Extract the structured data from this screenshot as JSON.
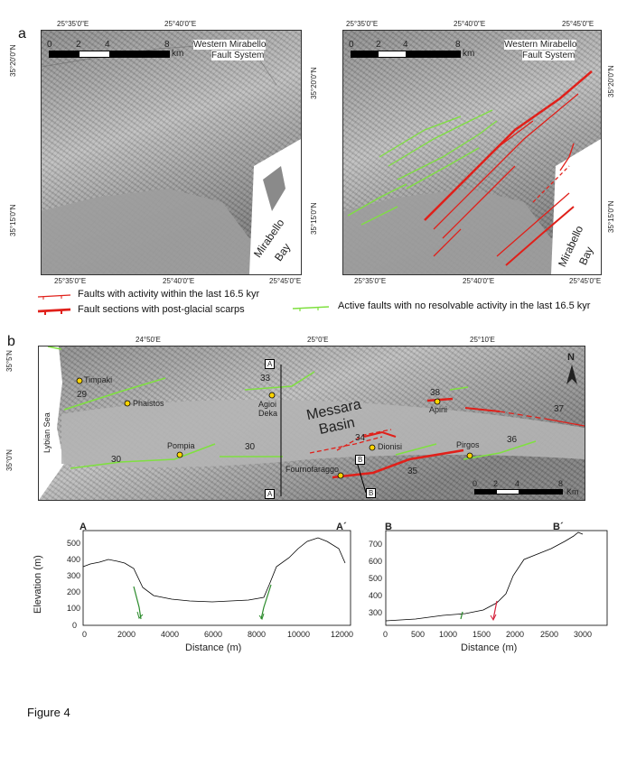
{
  "panel_a": {
    "letter": "a",
    "top_lon_labels": [
      "25°35'0\"E",
      "25°40'0\"E"
    ],
    "top_lon_labels_right": [
      "25°35'0\"E",
      "25°40'0\"E",
      "25°45'0\"E"
    ],
    "bottom_lon_labels": [
      "25°35'0\"E",
      "25°40'0\"E",
      "25°45'0\"E"
    ],
    "lat_labels": [
      "35°20'0\"N",
      "35°15'0\"N"
    ],
    "scale_ticks": [
      "0",
      "2",
      "4",
      "8"
    ],
    "scale_unit": "km",
    "title_line1": "Western Mirabello",
    "title_line2": "Fault System",
    "bay_line1": "Mirabello",
    "bay_line2": "Bay"
  },
  "legend": {
    "thin_red": "Faults with activity within the last 16.5 kyr",
    "thick_red": "Fault sections with post-glacial scarps",
    "green": "Active faults with no resolvable activity in the  last 16.5 kyr"
  },
  "panel_b": {
    "letter": "b",
    "lon_labels": [
      "24°50'E",
      "25°0'E",
      "25°10'E"
    ],
    "lat_labels": [
      "35°5'N",
      "35°0'N"
    ],
    "places": [
      "Timpaki",
      "Phaistos",
      "Agioi",
      "Deka",
      "Pompia",
      "Dionisi",
      "Fournofaraggo",
      "Apini",
      "Pirgos"
    ],
    "basin_line1": "Messara",
    "basin_line2": "Basin",
    "sea": "Lybian Sea",
    "fault_numbers": [
      "29",
      "30",
      "30",
      "33",
      "34",
      "35",
      "36",
      "37",
      "38"
    ],
    "section_markers": [
      "A",
      "A",
      "B",
      "B"
    ],
    "scale_ticks": [
      "0",
      "2",
      "4",
      "8"
    ],
    "scale_unit": "Km",
    "north": "N"
  },
  "profile_A": {
    "start": "A",
    "end": "A´",
    "ylabel": "Elevation (m)",
    "xlabel": "Distance (m)",
    "xticks": [
      "0",
      "2000",
      "4000",
      "6000",
      "8000",
      "10000",
      "12000"
    ],
    "yticks": [
      "0",
      "100",
      "200",
      "300",
      "400",
      "500"
    ]
  },
  "profile_B": {
    "start": "B",
    "end": "B´",
    "xlabel": "Distance (m)",
    "xticks": [
      "0",
      "500",
      "1000",
      "1500",
      "2000",
      "2500",
      "3000"
    ],
    "yticks": [
      "300",
      "400",
      "500",
      "600",
      "700"
    ]
  },
  "caption": "Figure 4",
  "colors": {
    "red": "#e0201a",
    "green": "#7fe040",
    "dark_green": "#2a8a2a"
  }
}
